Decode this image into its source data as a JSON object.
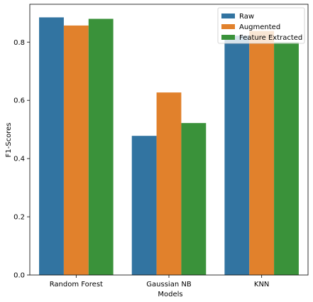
{
  "chart_data": {
    "type": "bar",
    "categories": [
      "Random Forest",
      "Gaussian NB",
      "KNN"
    ],
    "series": [
      {
        "name": "Raw",
        "color": "#3274a1",
        "values": [
          0.885,
          0.478,
          0.822
        ]
      },
      {
        "name": "Augmented",
        "color": "#e1812c",
        "values": [
          0.857,
          0.627,
          0.838
        ]
      },
      {
        "name": "Feature Extracted",
        "color": "#3a923a",
        "values": [
          0.88,
          0.522,
          0.8
        ]
      }
    ],
    "title": "",
    "xlabel": "Models",
    "ylabel": "F1-Scores",
    "ylim": [
      0,
      0.93
    ],
    "yticks": [
      0.0,
      0.2,
      0.4,
      0.6,
      0.8
    ],
    "ytick_labels": [
      "0.0",
      "0.2",
      "0.4",
      "0.6",
      "0.8"
    ],
    "grid": false,
    "legend_position": "top-right"
  }
}
